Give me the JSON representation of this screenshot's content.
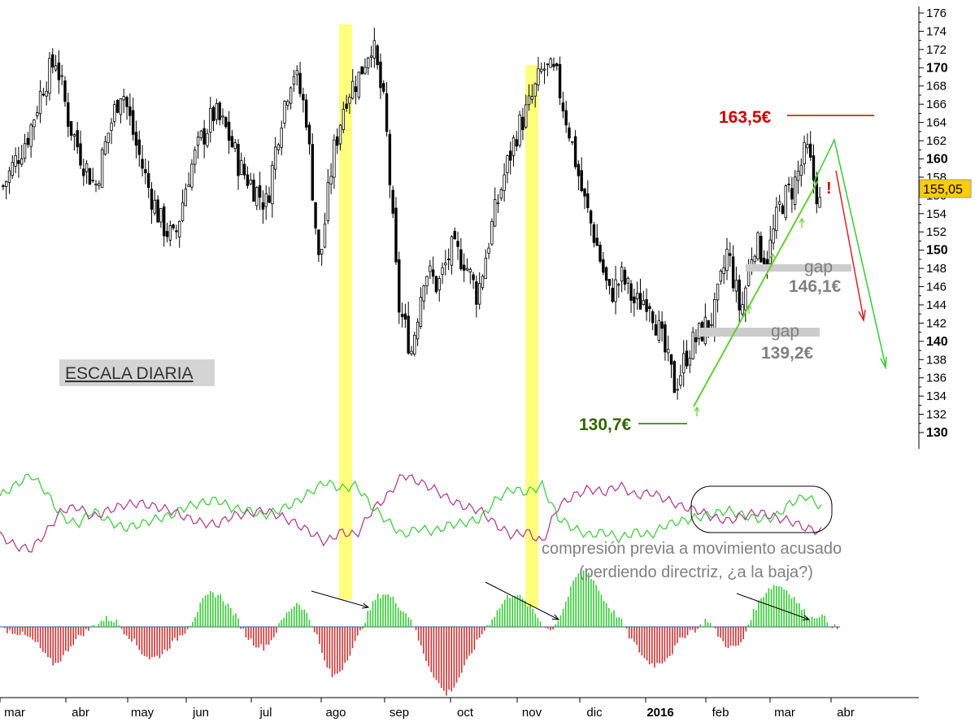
{
  "chart_data": [
    {
      "type": "candlestick",
      "scale_label": "ESCALA DIARIA",
      "y_axis": {
        "min": 129,
        "max": 177,
        "ticks": [
          130,
          132,
          134,
          136,
          138,
          140,
          142,
          144,
          146,
          148,
          150,
          152,
          154,
          156,
          158,
          160,
          162,
          164,
          166,
          168,
          170,
          172,
          174,
          176
        ],
        "bold_ticks": [
          130,
          140,
          150,
          160,
          170
        ]
      },
      "x_axis": {
        "months": [
          "mar",
          "abr",
          "may",
          "jun",
          "jul",
          "ago",
          "sep",
          "oct",
          "nov",
          "dic",
          "2016",
          "feb",
          "mar",
          "abr"
        ]
      },
      "close_path": [
        [
          "mar",
          157
        ],
        [
          "mar",
          160
        ],
        [
          "mar",
          163
        ],
        [
          "mar",
          168
        ],
        [
          "mar",
          171
        ],
        [
          "abr",
          164
        ],
        [
          "abr",
          160
        ],
        [
          "abr",
          157
        ],
        [
          "abr",
          163
        ],
        [
          "abr",
          168
        ],
        [
          "may",
          162
        ],
        [
          "may",
          157
        ],
        [
          "may",
          153
        ],
        [
          "may",
          151
        ],
        [
          "may",
          158
        ],
        [
          "jun",
          162
        ],
        [
          "jun",
          165
        ],
        [
          "jun",
          163
        ],
        [
          "jun",
          159
        ],
        [
          "jun",
          157
        ],
        [
          "jul",
          155
        ],
        [
          "jul",
          164
        ],
        [
          "jul",
          170
        ],
        [
          "jul",
          165
        ],
        [
          "jul",
          148
        ],
        [
          "ago",
          160
        ],
        [
          "ago",
          167
        ],
        [
          "ago",
          169
        ],
        [
          "ago",
          173
        ],
        [
          "ago",
          165
        ],
        [
          "sep",
          144
        ],
        [
          "sep",
          139
        ],
        [
          "sep",
          148
        ],
        [
          "sep",
          146
        ],
        [
          "sep",
          150
        ],
        [
          "oct",
          149
        ],
        [
          "oct",
          145
        ],
        [
          "oct",
          152
        ],
        [
          "oct",
          158
        ],
        [
          "oct",
          163
        ],
        [
          "nov",
          166
        ],
        [
          "nov",
          170
        ],
        [
          "nov",
          169
        ],
        [
          "nov",
          163
        ],
        [
          "nov",
          156
        ],
        [
          "dic",
          151
        ],
        [
          "dic",
          145
        ],
        [
          "dic",
          147
        ],
        [
          "dic",
          144
        ],
        [
          "dic",
          145
        ],
        [
          "2016",
          140
        ],
        [
          "2016",
          135
        ],
        [
          "2016",
          139
        ],
        [
          "2016",
          141
        ],
        [
          "2016",
          143
        ],
        [
          "feb",
          150
        ],
        [
          "feb",
          143
        ],
        [
          "feb",
          151
        ],
        [
          "feb",
          149
        ],
        [
          "feb",
          155
        ],
        [
          "mar",
          157
        ],
        [
          "mar",
          161
        ],
        [
          "mar",
          155
        ]
      ],
      "last_price": "155,05",
      "annotations": {
        "high": "163,5€",
        "low": "130,7€",
        "gap1_label": "gap",
        "gap1_value": "146,1€",
        "gap2_label": "gap",
        "gap2_value": "139,2€",
        "warning": "!"
      },
      "highlight_colors": {
        "band": "#ffff66",
        "up": "#33cc33",
        "down": "#cc3333",
        "resistance": "#cc0000",
        "support": "#336600",
        "trend": "#66cc33"
      }
    },
    {
      "type": "line",
      "series": [
        {
          "color": "#33cc33",
          "values": [
            10,
            16,
            22,
            12,
            -2,
            -6,
            2,
            -4,
            -8,
            -6,
            -3,
            -1,
            4,
            6,
            8,
            3,
            2,
            -1,
            2,
            6,
            12,
            18,
            14,
            16,
            4,
            -4,
            -12,
            -8,
            -10,
            -6,
            -5,
            -3,
            8,
            14,
            12,
            16,
            -2,
            -8,
            -12,
            -10,
            -14,
            -10,
            -12,
            -6,
            -4,
            -2,
            0,
            2,
            -1,
            -3,
            -2,
            6,
            10,
            4
          ]
        },
        {
          "color": "#b0318a",
          "values": [
            -12,
            -18,
            -20,
            -10,
            2,
            4,
            -2,
            2,
            5,
            6,
            4,
            2,
            -2,
            -5,
            -6,
            -1,
            0,
            2,
            -1,
            -5,
            -10,
            -16,
            -10,
            -12,
            2,
            10,
            22,
            18,
            14,
            8,
            4,
            2,
            -6,
            -12,
            -10,
            -16,
            4,
            10,
            14,
            12,
            16,
            10,
            12,
            8,
            4,
            2,
            -2,
            -4,
            -1,
            1,
            -2,
            -4,
            -8,
            -10
          ]
        }
      ],
      "caption_1": "compresión previa a movimiento acusado",
      "caption_2": "(perdiendo directriz, ¿a la baja?)"
    },
    {
      "type": "bar",
      "values": [
        -1,
        -2,
        -3,
        -5,
        -8,
        -14,
        -18,
        -14,
        -8,
        -4,
        -1,
        2,
        4,
        3,
        -2,
        -6,
        -12,
        -15,
        -14,
        -10,
        -6,
        -2,
        4,
        12,
        16,
        15,
        10,
        4,
        -4,
        -8,
        -10,
        -6,
        2,
        8,
        12,
        6,
        -2,
        -16,
        -24,
        -20,
        -12,
        -4,
        6,
        14,
        16,
        13,
        8,
        4,
        -8,
        -18,
        -26,
        -32,
        -28,
        -20,
        -12,
        -4,
        2,
        8,
        14,
        16,
        12,
        8,
        2,
        -2,
        4,
        14,
        24,
        28,
        22,
        14,
        8,
        4,
        -4,
        -10,
        -16,
        -18,
        -16,
        -12,
        -6,
        -2,
        -1,
        4,
        -2,
        -8,
        -10,
        -8,
        4,
        12,
        18,
        20,
        18,
        14,
        8,
        4,
        6,
        2,
        -1
      ]
    }
  ]
}
